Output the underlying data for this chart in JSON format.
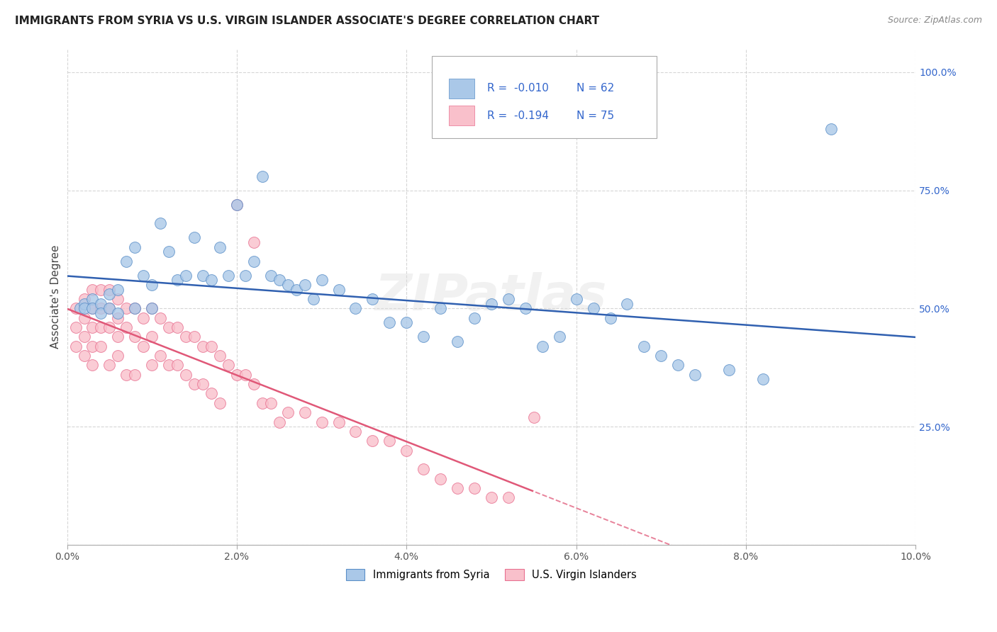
{
  "title": "IMMIGRANTS FROM SYRIA VS U.S. VIRGIN ISLANDER ASSOCIATE'S DEGREE CORRELATION CHART",
  "source": "Source: ZipAtlas.com",
  "ylabel": "Associate's Degree",
  "xmin": 0.0,
  "xmax": 0.1,
  "ymin": 0.0,
  "ymax": 1.05,
  "legend_blue_r": "-0.010",
  "legend_blue_n": "62",
  "legend_pink_r": "-0.194",
  "legend_pink_n": "75",
  "legend_label_blue": "Immigrants from Syria",
  "legend_label_pink": "U.S. Virgin Islanders",
  "blue_fill": "#aac8e8",
  "pink_fill": "#f9c0cb",
  "blue_edge": "#5a8fc8",
  "pink_edge": "#e87090",
  "blue_line": "#3060b0",
  "pink_line": "#e05878",
  "r_n_color": "#3366cc",
  "watermark": "ZIPatlas",
  "blue_x": [
    0.0015,
    0.002,
    0.002,
    0.003,
    0.003,
    0.004,
    0.004,
    0.005,
    0.005,
    0.006,
    0.006,
    0.007,
    0.008,
    0.008,
    0.009,
    0.01,
    0.01,
    0.011,
    0.012,
    0.013,
    0.014,
    0.015,
    0.016,
    0.017,
    0.018,
    0.019,
    0.02,
    0.021,
    0.022,
    0.023,
    0.024,
    0.025,
    0.026,
    0.027,
    0.028,
    0.029,
    0.03,
    0.032,
    0.034,
    0.036,
    0.038,
    0.04,
    0.042,
    0.044,
    0.046,
    0.048,
    0.05,
    0.052,
    0.054,
    0.056,
    0.058,
    0.06,
    0.062,
    0.064,
    0.066,
    0.068,
    0.07,
    0.072,
    0.074,
    0.078,
    0.082,
    0.09
  ],
  "blue_y": [
    0.5,
    0.51,
    0.5,
    0.52,
    0.5,
    0.51,
    0.49,
    0.53,
    0.5,
    0.54,
    0.49,
    0.6,
    0.63,
    0.5,
    0.57,
    0.55,
    0.5,
    0.68,
    0.62,
    0.56,
    0.57,
    0.65,
    0.57,
    0.56,
    0.63,
    0.57,
    0.72,
    0.57,
    0.6,
    0.78,
    0.57,
    0.56,
    0.55,
    0.54,
    0.55,
    0.52,
    0.56,
    0.54,
    0.5,
    0.52,
    0.47,
    0.47,
    0.44,
    0.5,
    0.43,
    0.48,
    0.51,
    0.52,
    0.5,
    0.42,
    0.44,
    0.52,
    0.5,
    0.48,
    0.51,
    0.42,
    0.4,
    0.38,
    0.36,
    0.37,
    0.35,
    0.88
  ],
  "pink_x": [
    0.001,
    0.001,
    0.001,
    0.002,
    0.002,
    0.002,
    0.002,
    0.003,
    0.003,
    0.003,
    0.003,
    0.003,
    0.004,
    0.004,
    0.004,
    0.004,
    0.005,
    0.005,
    0.005,
    0.005,
    0.006,
    0.006,
    0.006,
    0.006,
    0.007,
    0.007,
    0.007,
    0.008,
    0.008,
    0.008,
    0.009,
    0.009,
    0.01,
    0.01,
    0.01,
    0.011,
    0.011,
    0.012,
    0.012,
    0.013,
    0.013,
    0.014,
    0.014,
    0.015,
    0.015,
    0.016,
    0.016,
    0.017,
    0.017,
    0.018,
    0.018,
    0.019,
    0.02,
    0.02,
    0.021,
    0.022,
    0.022,
    0.023,
    0.024,
    0.025,
    0.026,
    0.028,
    0.03,
    0.032,
    0.034,
    0.036,
    0.038,
    0.04,
    0.042,
    0.044,
    0.046,
    0.048,
    0.05,
    0.052,
    0.055
  ],
  "pink_y": [
    0.5,
    0.46,
    0.42,
    0.52,
    0.48,
    0.44,
    0.4,
    0.54,
    0.5,
    0.46,
    0.42,
    0.38,
    0.54,
    0.5,
    0.46,
    0.42,
    0.54,
    0.5,
    0.46,
    0.38,
    0.52,
    0.48,
    0.44,
    0.4,
    0.5,
    0.46,
    0.36,
    0.5,
    0.44,
    0.36,
    0.48,
    0.42,
    0.5,
    0.44,
    0.38,
    0.48,
    0.4,
    0.46,
    0.38,
    0.46,
    0.38,
    0.44,
    0.36,
    0.44,
    0.34,
    0.42,
    0.34,
    0.42,
    0.32,
    0.4,
    0.3,
    0.38,
    0.72,
    0.36,
    0.36,
    0.64,
    0.34,
    0.3,
    0.3,
    0.26,
    0.28,
    0.28,
    0.26,
    0.26,
    0.24,
    0.22,
    0.22,
    0.2,
    0.16,
    0.14,
    0.12,
    0.12,
    0.1,
    0.1,
    0.27
  ]
}
